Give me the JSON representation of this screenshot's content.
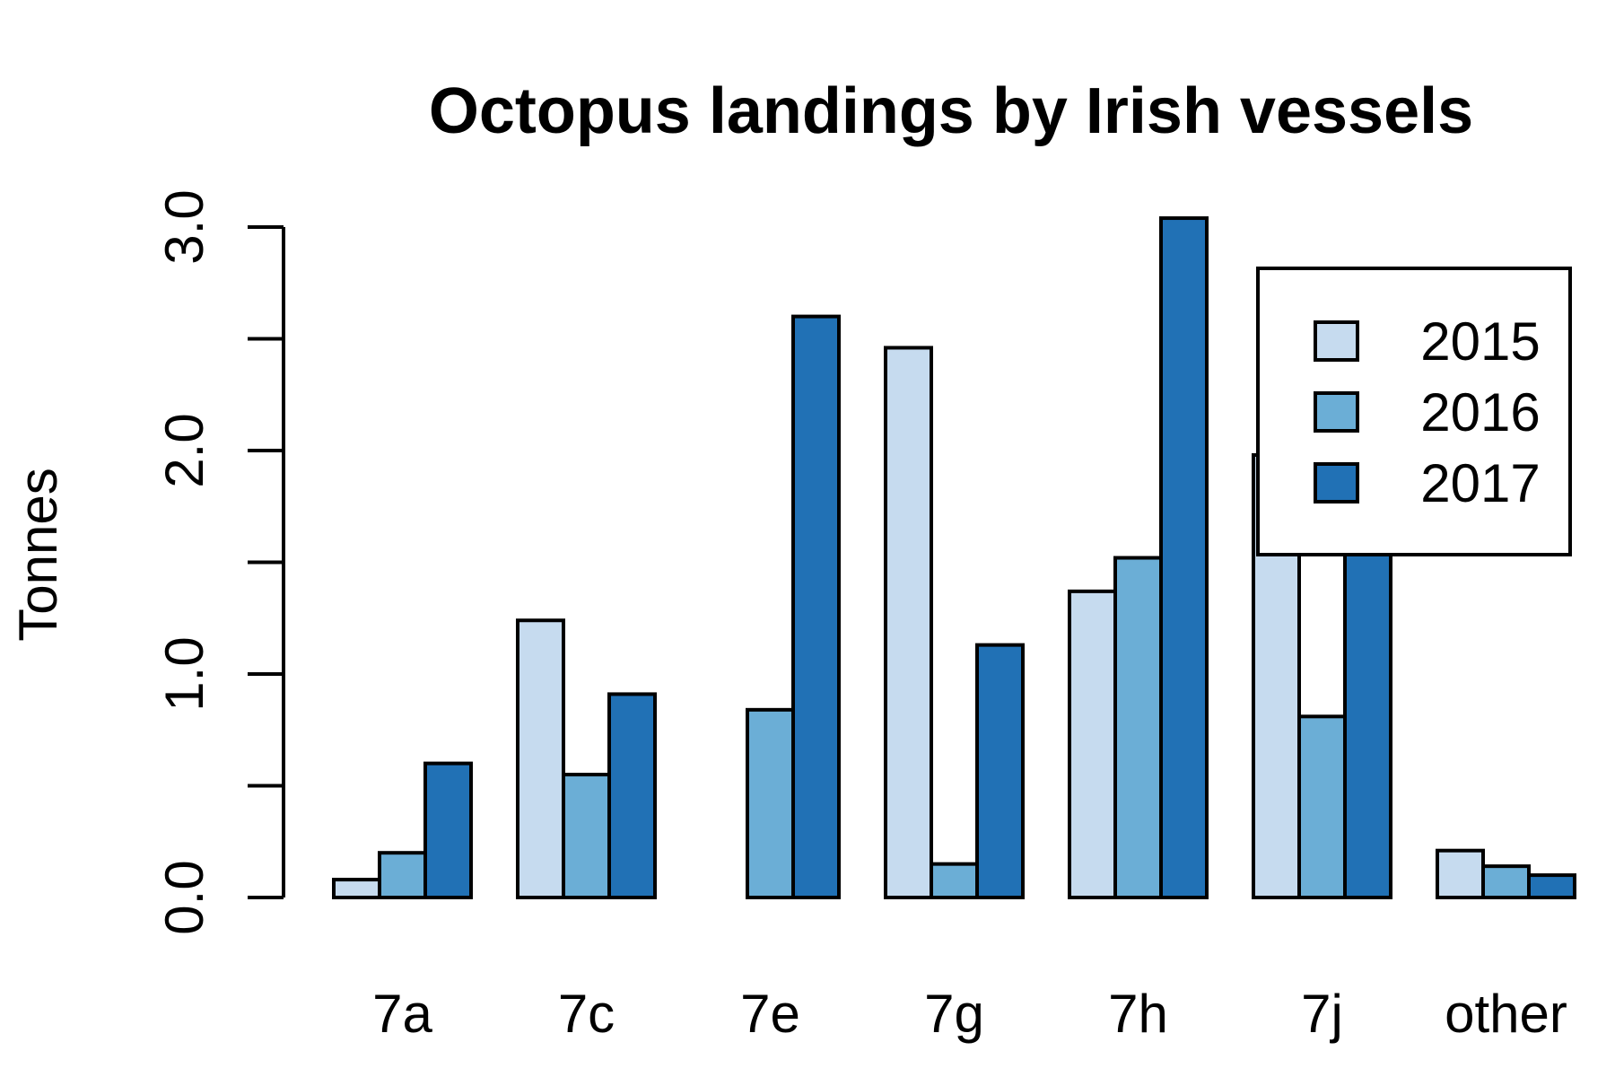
{
  "chart_data": {
    "type": "bar",
    "title": "Octopus landings by Irish vessels",
    "xlabel": "",
    "ylabel": "Tonnes",
    "ylim": [
      0,
      3.0
    ],
    "yticks": [
      0.0,
      0.5,
      1.0,
      1.5,
      2.0,
      2.5,
      3.0
    ],
    "ytick_labels": [
      "0.0",
      "",
      "1.0",
      "",
      "2.0",
      "",
      "3.0"
    ],
    "categories": [
      "7a",
      "7c",
      "7e",
      "7g",
      "7h",
      "7j",
      "other"
    ],
    "series": [
      {
        "name": "2015",
        "color": "#c6dbef",
        "values": [
          0.08,
          1.24,
          0.0,
          2.46,
          1.37,
          1.98,
          0.21
        ]
      },
      {
        "name": "2016",
        "color": "#6baed6",
        "values": [
          0.2,
          0.55,
          0.84,
          0.15,
          1.52,
          0.81,
          0.14
        ]
      },
      {
        "name": "2017",
        "color": "#2171b5",
        "values": [
          0.6,
          0.91,
          2.6,
          1.13,
          3.04,
          1.65,
          0.1
        ]
      }
    ],
    "legend_position": "top-right",
    "grid": false
  }
}
